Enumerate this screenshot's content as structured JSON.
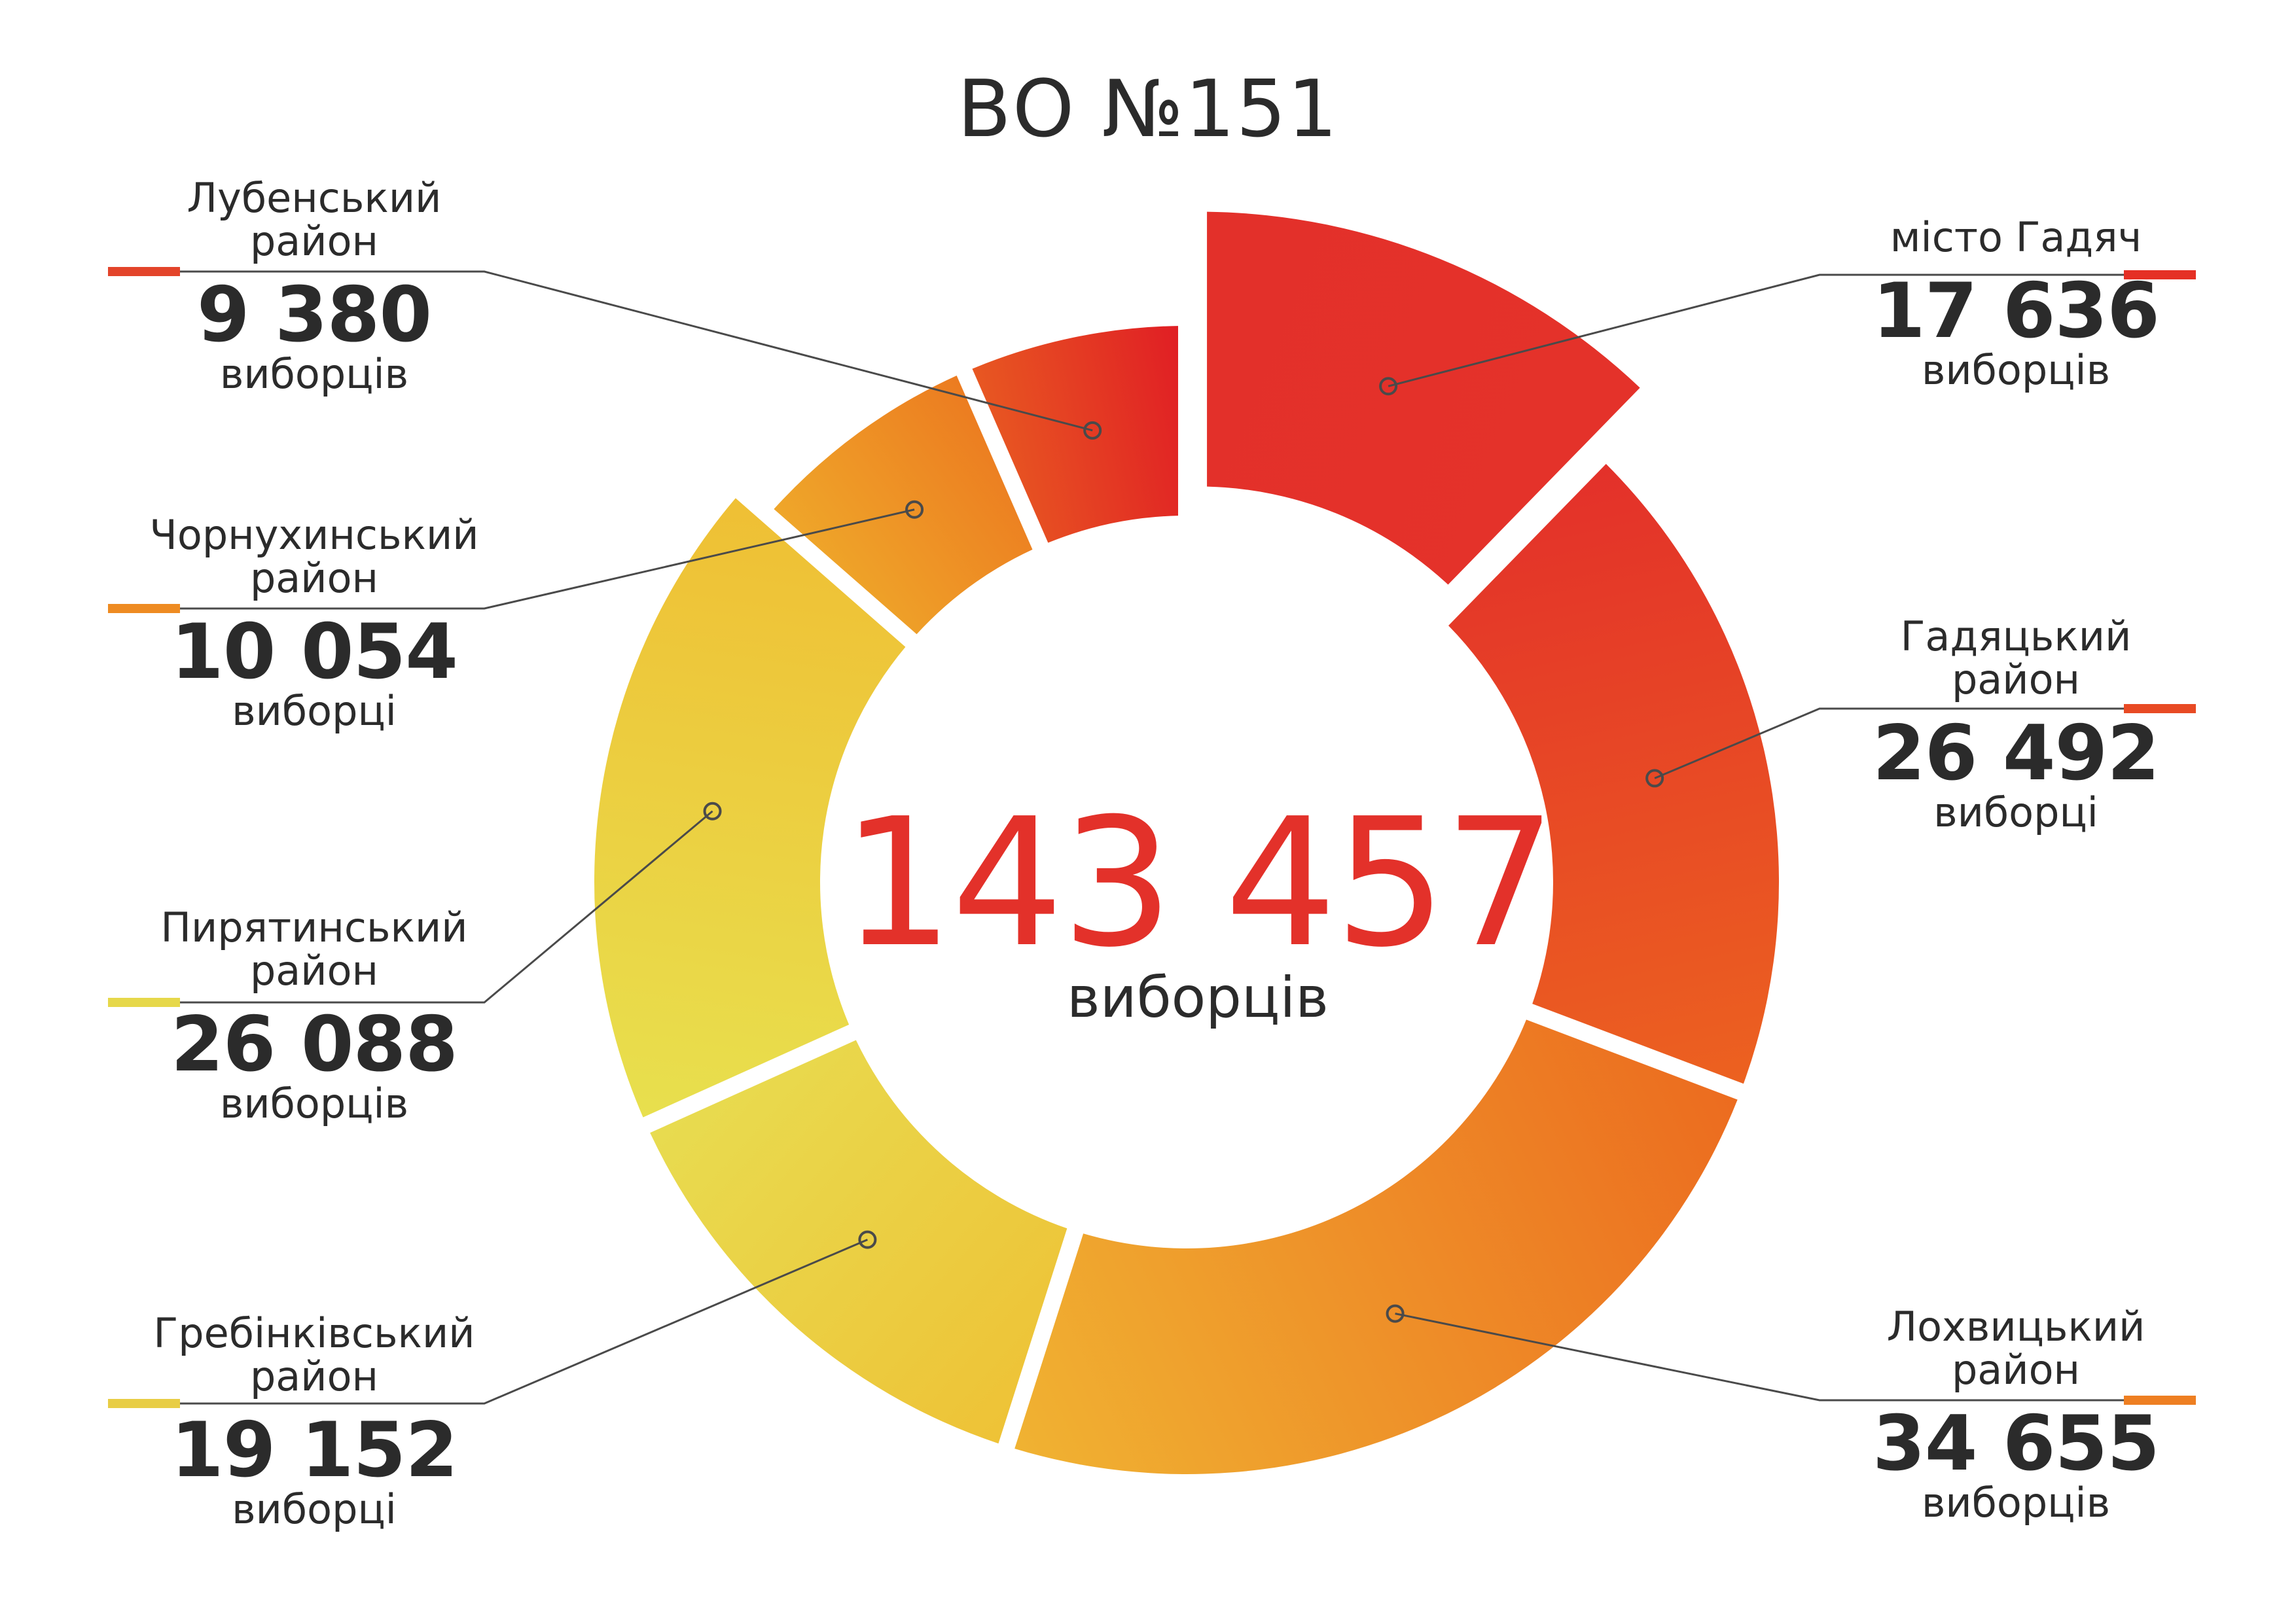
{
  "title": "ВО №151",
  "center": {
    "total": "143 457",
    "unit": "виборців"
  },
  "colors": {
    "red": "#e01e24",
    "red_orange": "#e53d26",
    "orange": "#ec6b1f",
    "amber": "#f0a52a",
    "yellow": "#e8dd4e",
    "leader": "#4a4a4a"
  },
  "chart_data": {
    "type": "pie",
    "title": "ВО №151",
    "total": 143457,
    "slices": [
      {
        "name": "місто Гадяч",
        "value": 17636,
        "label": "17 636",
        "unit": "виборців",
        "color_from": "#e3302a",
        "color_to": "#e4322a",
        "legend_color": "#e53025"
      },
      {
        "name": "Гадяцький\nрайон",
        "value": 26492,
        "label": "26 492",
        "unit": "виборці",
        "color_from": "#e3302a",
        "color_to": "#ec6220",
        "legend_color": "#e84a24"
      },
      {
        "name": "Лохвицький\nрайон",
        "value": 34655,
        "label": "34 655",
        "unit": "виборців",
        "color_from": "#ec6b1f",
        "color_to": "#f0b332",
        "legend_color": "#ee7f22"
      },
      {
        "name": "Гребінківський\nрайон",
        "value": 19152,
        "label": "19 152",
        "unit": "виборці",
        "color_from": "#eec236",
        "color_to": "#e8dc50",
        "legend_color": "#e8cd45"
      },
      {
        "name": "Пирятинський\nрайон",
        "value": 26088,
        "label": "26 088",
        "unit": "виборців",
        "color_from": "#e8e04e",
        "color_to": "#efbf34",
        "legend_color": "#e6d84a"
      },
      {
        "name": "Чорнухинський\nрайон",
        "value": 10054,
        "label": "10 054",
        "unit": "виборці",
        "color_from": "#efa82a",
        "color_to": "#ec7a20",
        "legend_color": "#ee8b22"
      },
      {
        "name": "Лубенський\nрайон",
        "value": 9380,
        "label": "9 380",
        "unit": "виборців",
        "color_from": "#e85a22",
        "color_to": "#e01c24",
        "legend_color": "#e3442a"
      }
    ]
  }
}
